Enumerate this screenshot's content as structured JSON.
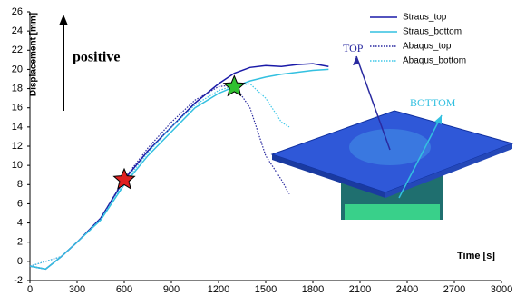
{
  "chart_data": {
    "type": "line",
    "ylabel": "Displacement [mm]",
    "xlabel": "Time [s]",
    "annotations": {
      "positive": "positive",
      "top": "TOP",
      "bottom": "BOTTOM"
    },
    "xlim": [
      0,
      3000
    ],
    "xticks": [
      0,
      300,
      600,
      900,
      1200,
      1500,
      1800,
      2100,
      2400,
      2700,
      3000
    ],
    "ylim": [
      -2,
      26
    ],
    "yticks": [
      -2,
      0,
      2,
      4,
      6,
      8,
      10,
      12,
      14,
      16,
      18,
      20,
      22,
      24,
      26
    ],
    "legend": "upper right",
    "series": [
      {
        "name": "Straus_top",
        "color": "#1a1aa8",
        "dash": "solid",
        "x": [
          0,
          100,
          200,
          300,
          450,
          600,
          750,
          900,
          1050,
          1200,
          1300,
          1400,
          1500,
          1600,
          1700,
          1800,
          1900
        ],
        "values": [
          -0.5,
          -0.8,
          0.5,
          2,
          4.5,
          8.5,
          11.5,
          14,
          16.5,
          18.5,
          19.6,
          20.2,
          20.4,
          20.3,
          20.5,
          20.6,
          20.3
        ]
      },
      {
        "name": "Straus_bottom",
        "color": "#33c0e0",
        "dash": "solid",
        "x": [
          0,
          100,
          200,
          300,
          450,
          600,
          750,
          900,
          1050,
          1200,
          1300,
          1400,
          1500,
          1600,
          1700,
          1800,
          1900
        ],
        "values": [
          -0.5,
          -0.8,
          0.5,
          2,
          4.3,
          8,
          11,
          13.5,
          16,
          17.5,
          18.2,
          18.8,
          19.2,
          19.5,
          19.7,
          19.9,
          20
        ]
      },
      {
        "name": "Abaqus_top",
        "color": "#2a2aa0",
        "dash": "dotted",
        "x": [
          0,
          200,
          300,
          450,
          600,
          750,
          900,
          1050,
          1200,
          1300,
          1400,
          1500,
          1600,
          1650
        ],
        "values": [
          -0.5,
          0.5,
          2,
          4.5,
          8.6,
          11.8,
          14.5,
          16.8,
          18.2,
          18.4,
          16,
          11,
          8.5,
          7
        ]
      },
      {
        "name": "Abaqus_bottom",
        "color": "#40c8e8",
        "dash": "dotted",
        "x": [
          0,
          200,
          300,
          450,
          600,
          750,
          900,
          1050,
          1200,
          1300,
          1400,
          1500,
          1600,
          1650
        ],
        "values": [
          -0.5,
          0.5,
          2,
          4.4,
          8.2,
          11.3,
          14,
          16.3,
          17.8,
          18.3,
          18.5,
          17,
          14.5,
          14
        ]
      }
    ],
    "markers": [
      {
        "x": 600,
        "y": 8.5,
        "color": "#e02020"
      },
      {
        "x": 1300,
        "y": 18.2,
        "color": "#30c030"
      }
    ]
  }
}
